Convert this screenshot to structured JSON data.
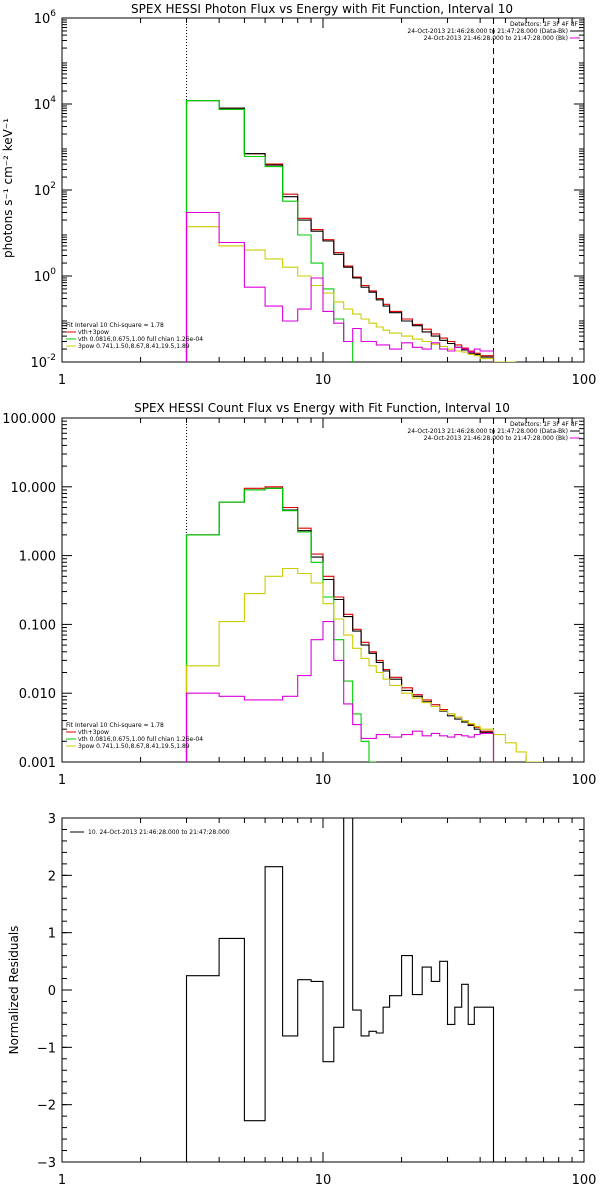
{
  "chart_data": [
    {
      "type": "line",
      "title": "SPEX HESSI Photon Flux vs Energy with Fit Function, Interval 10",
      "ylabel": "photons s⁻¹ cm⁻² keV⁻¹",
      "xlabel": "",
      "xscale": "log",
      "yscale": "log",
      "xlim": [
        1,
        100
      ],
      "ylim": [
        0.01,
        1000000
      ],
      "xticks": [
        "1",
        "10",
        "100"
      ],
      "yticks": [
        {
          "v": 0.01,
          "base": "10",
          "exp": "-2"
        },
        {
          "v": 1,
          "base": "10",
          "exp": "0"
        },
        {
          "v": 100,
          "base": "10",
          "exp": "2"
        },
        {
          "v": 10000,
          "base": "10",
          "exp": "4"
        },
        {
          "v": 1000000,
          "base": "10",
          "exp": "6"
        }
      ],
      "vlines": [
        {
          "x": 3,
          "style": "dotted"
        },
        {
          "x": 45,
          "style": "dashed"
        }
      ],
      "legend_topright": [
        {
          "text": "Detectors: 1F 3F 4F 8F",
          "color": ""
        },
        {
          "text": "24-Oct-2013 21:46:28.000 to 21:47:28.000 (Data-Bk)",
          "color": "#000000"
        },
        {
          "text": "24-Oct-2013 21:46:28.000 to 21:47:28.000 (Bk)",
          "color": "#dd00dd"
        }
      ],
      "legend_bottomleft": [
        {
          "text": "Fit Interval 10   Chi-square = 1.78",
          "color": ""
        },
        {
          "text": "vth+3pow",
          "color": "#dd0000"
        },
        {
          "text": "vth 0.0816,0.675,1.00  full chian 1.26e-04",
          "color": "#00cc00"
        },
        {
          "text": "3pow 0.741,1.50,8.67,8.41,19.5,1.89",
          "color": "#cccc00"
        }
      ],
      "series": [
        {
          "color": "#dd0000",
          "edges": [
            3,
            4,
            5,
            6,
            7,
            8,
            9,
            10,
            11,
            12,
            13,
            14,
            15,
            16,
            17,
            18,
            20,
            22,
            24,
            26,
            28,
            30,
            32,
            34,
            36,
            38,
            40,
            45
          ],
          "values": [
            12000,
            8000,
            700,
            400,
            80,
            22,
            12,
            7,
            3.5,
            1.7,
            0.95,
            0.6,
            0.45,
            0.3,
            0.22,
            0.15,
            0.1,
            0.075,
            0.058,
            0.045,
            0.036,
            0.03,
            0.025,
            0.021,
            0.018,
            0.016,
            0.014
          ]
        },
        {
          "color": "#000000",
          "edges": [
            3,
            4,
            5,
            6,
            7,
            8,
            9,
            10,
            11,
            12,
            13,
            14,
            15,
            16,
            17,
            18,
            20,
            22,
            24,
            26,
            28,
            30,
            32,
            34,
            36,
            38,
            40,
            45
          ],
          "values": [
            12000,
            8000,
            700,
            380,
            70,
            20,
            11,
            6.5,
            3.2,
            1.6,
            0.9,
            0.55,
            0.42,
            0.28,
            0.2,
            0.14,
            0.09,
            0.07,
            0.05,
            0.04,
            0.032,
            0.027,
            0.022,
            0.019,
            0.016,
            0.015,
            0.013
          ]
        },
        {
          "color": "#00cc00",
          "edges": [
            3,
            4,
            5,
            6,
            7,
            8,
            9,
            10,
            11,
            12,
            13
          ],
          "values": [
            12000,
            7500,
            600,
            350,
            55,
            9,
            2,
            0.5,
            0.1,
            0.03,
            0.005
          ]
        },
        {
          "color": "#cccc00",
          "edges": [
            3,
            4,
            5,
            6,
            7,
            8,
            9,
            10,
            11,
            12,
            13,
            14,
            15,
            16,
            17,
            18,
            20,
            22,
            24,
            26,
            28,
            30,
            32,
            34,
            36,
            38,
            40,
            45,
            50,
            55
          ],
          "values": [
            14,
            5,
            4,
            2.5,
            1.6,
            1.0,
            0.6,
            0.4,
            0.25,
            0.17,
            0.13,
            0.1,
            0.08,
            0.065,
            0.055,
            0.047,
            0.04,
            0.034,
            0.03,
            0.026,
            0.023,
            0.02,
            0.018,
            0.017,
            0.015,
            0.014,
            0.012,
            0.01,
            0.009
          ]
        },
        {
          "color": "#dd00dd",
          "edges": [
            3,
            4,
            5,
            6,
            7,
            8,
            9,
            10,
            11,
            12,
            13,
            14,
            16,
            18,
            20,
            22,
            24,
            26,
            28,
            30,
            32,
            34,
            36,
            38,
            40,
            45
          ],
          "values": [
            30,
            6,
            0.55,
            0.2,
            0.09,
            0.17,
            0.9,
            0.15,
            0.08,
            0.03,
            0.06,
            0.03,
            0.025,
            0.02,
            0.028,
            0.022,
            0.02,
            0.028,
            0.02,
            0.018,
            0.022,
            0.02,
            0.017,
            0.02,
            0.018
          ]
        }
      ]
    },
    {
      "type": "line",
      "title": "SPEX HESSI Count Flux vs Energy with Fit Function, Interval 10",
      "ylabel": "",
      "xlabel": "",
      "xscale": "log",
      "yscale": "log",
      "xlim": [
        1,
        100
      ],
      "ylim": [
        0.001,
        100
      ],
      "xticks": [
        "1",
        "10",
        "100"
      ],
      "yticks": [
        {
          "v": 0.001,
          "label": "0.001"
        },
        {
          "v": 0.01,
          "label": "0.010"
        },
        {
          "v": 0.1,
          "label": "0.100"
        },
        {
          "v": 1,
          "label": "1.000"
        },
        {
          "v": 10,
          "label": "10.000"
        },
        {
          "v": 100,
          "label": "100.000"
        }
      ],
      "vlines": [
        {
          "x": 3,
          "style": "dotted"
        },
        {
          "x": 45,
          "style": "dashed"
        }
      ],
      "legend_topright": [
        {
          "text": "Detectors: 1F 3F 4F 8F",
          "color": ""
        },
        {
          "text": "24-Oct-2013 21:46:28.000 to 21:47:28.000 (Data-Bk)",
          "color": "#000000"
        },
        {
          "text": "24-Oct-2013 21:46:28.000 to 21:47:28.000 (Bk)",
          "color": "#dd00dd"
        }
      ],
      "legend_bottomleft": [
        {
          "text": "Fit Interval 10   Chi-square = 1.78",
          "color": ""
        },
        {
          "text": "vth+3pow",
          "color": "#dd0000"
        },
        {
          "text": "vth 0.0816,0.675,1.00  full chian 1.26e-04",
          "color": "#00cc00"
        },
        {
          "text": "3pow 0.741,1.50,8.67,8.41,19.5,1.89",
          "color": "#cccc00"
        }
      ],
      "series": [
        {
          "color": "#dd0000",
          "edges": [
            3,
            4,
            5,
            6,
            7,
            8,
            9,
            10,
            11,
            12,
            13,
            14,
            15,
            16,
            17,
            18,
            20,
            22,
            24,
            26,
            28,
            30,
            32,
            34,
            36,
            38,
            40,
            45
          ],
          "values": [
            2,
            6,
            9.5,
            10,
            5,
            2.5,
            1.05,
            0.5,
            0.25,
            0.14,
            0.085,
            0.055,
            0.04,
            0.03,
            0.022,
            0.017,
            0.012,
            0.0095,
            0.008,
            0.0068,
            0.0058,
            0.005,
            0.0045,
            0.004,
            0.0035,
            0.0032,
            0.0028
          ]
        },
        {
          "color": "#000000",
          "edges": [
            3,
            4,
            5,
            6,
            7,
            8,
            9,
            10,
            11,
            12,
            13,
            14,
            15,
            16,
            17,
            18,
            20,
            22,
            24,
            26,
            28,
            30,
            32,
            34,
            36,
            38,
            40,
            45
          ],
          "values": [
            2,
            6,
            9,
            9.5,
            4.6,
            2.3,
            0.95,
            0.45,
            0.23,
            0.13,
            0.08,
            0.05,
            0.038,
            0.028,
            0.021,
            0.016,
            0.011,
            0.009,
            0.0075,
            0.0064,
            0.0055,
            0.0047,
            0.0042,
            0.0038,
            0.0034,
            0.003,
            0.0027
          ]
        },
        {
          "color": "#00cc00",
          "edges": [
            3,
            4,
            5,
            6,
            7,
            8,
            9,
            10,
            11,
            12,
            13,
            14,
            15,
            16
          ],
          "values": [
            2,
            6,
            9,
            9.5,
            4.5,
            2.2,
            0.8,
            0.25,
            0.06,
            0.015,
            0.005,
            0.002,
            0.0009
          ]
        },
        {
          "color": "#cccc00",
          "edges": [
            3,
            4,
            5,
            6,
            7,
            8,
            9,
            10,
            11,
            12,
            13,
            14,
            15,
            16,
            17,
            18,
            20,
            22,
            24,
            26,
            28,
            30,
            32,
            34,
            36,
            38,
            40,
            45,
            50,
            55,
            60,
            70
          ],
          "values": [
            0.025,
            0.11,
            0.28,
            0.5,
            0.65,
            0.55,
            0.4,
            0.2,
            0.12,
            0.07,
            0.045,
            0.032,
            0.025,
            0.02,
            0.016,
            0.013,
            0.01,
            0.0085,
            0.0073,
            0.0064,
            0.0056,
            0.005,
            0.0045,
            0.004,
            0.0036,
            0.0033,
            0.003,
            0.0025,
            0.0019,
            0.0014,
            0.001
          ]
        },
        {
          "color": "#dd00dd",
          "edges": [
            3,
            4,
            5,
            6,
            7,
            8,
            9,
            10,
            11,
            12,
            13,
            14,
            16,
            18,
            20,
            22,
            24,
            26,
            28,
            30,
            32,
            34,
            36,
            38,
            40,
            45
          ],
          "values": [
            0.01,
            0.009,
            0.008,
            0.008,
            0.009,
            0.018,
            0.06,
            0.11,
            0.03,
            0.007,
            0.0035,
            0.0022,
            0.0025,
            0.0023,
            0.0025,
            0.0028,
            0.0024,
            0.0026,
            0.0024,
            0.0023,
            0.0025,
            0.0024,
            0.0023,
            0.0025,
            0.0026
          ]
        }
      ]
    },
    {
      "type": "line",
      "title": "",
      "ylabel": "Normalized Residuals",
      "xlabel": "",
      "xscale": "log",
      "yscale": "linear",
      "xlim": [
        1,
        100
      ],
      "ylim": [
        -3,
        3
      ],
      "xticks": [
        "1",
        "10",
        "100"
      ],
      "yticks": [
        {
          "v": -3,
          "label": "−3"
        },
        {
          "v": -2,
          "label": "−2"
        },
        {
          "v": -1,
          "label": "−1"
        },
        {
          "v": 0,
          "label": "0"
        },
        {
          "v": 1,
          "label": "1"
        },
        {
          "v": 2,
          "label": "2"
        },
        {
          "v": 3,
          "label": "3"
        }
      ],
      "legend_topleft": [
        {
          "text": "10. 24-Oct-2013 21:46:28.000 to 21:47:28.000",
          "color": "#000000"
        }
      ],
      "series": [
        {
          "color": "#000000",
          "edges": [
            3,
            4,
            5,
            6,
            7,
            8,
            9,
            10,
            11,
            12,
            13,
            14,
            15,
            16,
            17,
            18,
            20,
            22,
            24,
            26,
            28,
            30,
            32,
            34,
            36,
            38,
            40,
            45
          ],
          "values": [
            0.25,
            0.9,
            -2.28,
            2.15,
            -0.8,
            0.18,
            0.15,
            -1.25,
            -0.65,
            3.0,
            -0.35,
            -0.8,
            -0.72,
            -0.75,
            -0.3,
            -0.1,
            0.6,
            -0.08,
            0.4,
            0.15,
            0.5,
            -0.6,
            -0.3,
            0.1,
            -0.6,
            -0.3,
            -0.3
          ]
        }
      ]
    }
  ]
}
